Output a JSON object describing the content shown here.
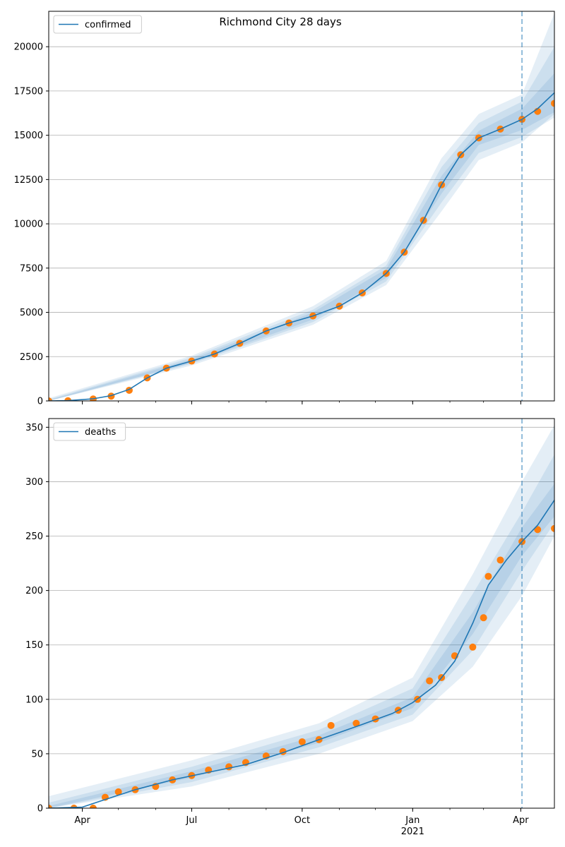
{
  "title": "Richmond City 28 days",
  "colors": {
    "model_line": "#1f77b4",
    "observed_points": "#ff7f0e",
    "band": "#1f77b4",
    "grid": "#b0b0b0",
    "forecast_marker": "#1f77b4"
  },
  "x_axis": {
    "major_ticks": [
      {
        "label": "Apr",
        "date": "2020-04-01"
      },
      {
        "label": "Jul",
        "date": "2020-07-01"
      },
      {
        "label": "Oct",
        "date": "2020-10-01"
      },
      {
        "label": "Jan",
        "sublabel": "2021",
        "date": "2021-01-01"
      },
      {
        "label": "Apr",
        "date": "2021-04-01"
      }
    ],
    "range": [
      "2020-03-04",
      "2021-04-29"
    ],
    "forecast_start": "2021-04-02"
  },
  "chart_data": [
    {
      "type": "line",
      "panel": "top",
      "legend": "confirmed",
      "legend_position": "top-left",
      "grid": "horizontal",
      "ylim": [
        0,
        22000
      ],
      "yticks": [
        0,
        2500,
        5000,
        7500,
        10000,
        12500,
        15000,
        17500,
        20000
      ],
      "model": [
        {
          "x": "2020-03-04",
          "y": 0
        },
        {
          "x": "2020-03-20",
          "y": 20
        },
        {
          "x": "2020-04-10",
          "y": 120
        },
        {
          "x": "2020-04-25",
          "y": 300
        },
        {
          "x": "2020-05-10",
          "y": 650
        },
        {
          "x": "2020-05-25",
          "y": 1300
        },
        {
          "x": "2020-06-10",
          "y": 1850
        },
        {
          "x": "2020-07-01",
          "y": 2250
        },
        {
          "x": "2020-07-20",
          "y": 2650
        },
        {
          "x": "2020-08-10",
          "y": 3250
        },
        {
          "x": "2020-09-01",
          "y": 3950
        },
        {
          "x": "2020-09-20",
          "y": 4400
        },
        {
          "x": "2020-10-10",
          "y": 4800
        },
        {
          "x": "2020-11-01",
          "y": 5350
        },
        {
          "x": "2020-11-20",
          "y": 6100
        },
        {
          "x": "2020-12-10",
          "y": 7200
        },
        {
          "x": "2020-12-25",
          "y": 8400
        },
        {
          "x": "2021-01-10",
          "y": 10200
        },
        {
          "x": "2021-01-25",
          "y": 12200
        },
        {
          "x": "2021-02-10",
          "y": 13900
        },
        {
          "x": "2021-02-25",
          "y": 14850
        },
        {
          "x": "2021-03-15",
          "y": 15350
        },
        {
          "x": "2021-04-02",
          "y": 15900
        },
        {
          "x": "2021-04-15",
          "y": 16500
        },
        {
          "x": "2021-04-29",
          "y": 17400
        }
      ],
      "observed": [
        {
          "x": "2020-03-04",
          "y": 0
        },
        {
          "x": "2020-03-20",
          "y": 10
        },
        {
          "x": "2020-04-10",
          "y": 110
        },
        {
          "x": "2020-04-25",
          "y": 270
        },
        {
          "x": "2020-05-10",
          "y": 600
        },
        {
          "x": "2020-05-25",
          "y": 1300
        },
        {
          "x": "2020-06-10",
          "y": 1850
        },
        {
          "x": "2020-07-01",
          "y": 2250
        },
        {
          "x": "2020-07-20",
          "y": 2650
        },
        {
          "x": "2020-08-10",
          "y": 3250
        },
        {
          "x": "2020-09-01",
          "y": 3950
        },
        {
          "x": "2020-09-20",
          "y": 4400
        },
        {
          "x": "2020-10-10",
          "y": 4800
        },
        {
          "x": "2020-11-01",
          "y": 5350
        },
        {
          "x": "2020-11-20",
          "y": 6100
        },
        {
          "x": "2020-12-10",
          "y": 7200
        },
        {
          "x": "2020-12-25",
          "y": 8400
        },
        {
          "x": "2021-01-10",
          "y": 10200
        },
        {
          "x": "2021-01-25",
          "y": 12200
        },
        {
          "x": "2021-02-10",
          "y": 13900
        },
        {
          "x": "2021-02-25",
          "y": 14850
        },
        {
          "x": "2021-03-15",
          "y": 15350
        },
        {
          "x": "2021-04-02",
          "y": 15900
        },
        {
          "x": "2021-04-15",
          "y": 16350
        },
        {
          "x": "2021-04-29",
          "y": 16800
        }
      ],
      "bands": [
        [
          {
            "x": "2020-03-04",
            "lo": 0,
            "hi": 40
          },
          {
            "x": "2020-07-01",
            "lo": 2150,
            "hi": 2350
          },
          {
            "x": "2020-10-10",
            "lo": 4600,
            "hi": 5000
          },
          {
            "x": "2020-12-10",
            "lo": 6950,
            "hi": 7450
          },
          {
            "x": "2021-01-25",
            "lo": 11700,
            "hi": 12700
          },
          {
            "x": "2021-02-25",
            "lo": 14450,
            "hi": 15250
          },
          {
            "x": "2021-04-02",
            "lo": 15300,
            "hi": 16500
          },
          {
            "x": "2021-04-29",
            "lo": 16300,
            "hi": 18500
          }
        ],
        [
          {
            "x": "2020-03-04",
            "lo": 0,
            "hi": 80
          },
          {
            "x": "2020-07-01",
            "lo": 2100,
            "hi": 2450
          },
          {
            "x": "2020-10-10",
            "lo": 4450,
            "hi": 5150
          },
          {
            "x": "2020-12-10",
            "lo": 6750,
            "hi": 7650
          },
          {
            "x": "2021-01-25",
            "lo": 11200,
            "hi": 13200
          },
          {
            "x": "2021-02-25",
            "lo": 14000,
            "hi": 15700
          },
          {
            "x": "2021-04-02",
            "lo": 14900,
            "hi": 16900
          },
          {
            "x": "2021-04-29",
            "lo": 16000,
            "hi": 20000
          }
        ],
        [
          {
            "x": "2020-03-04",
            "lo": 0,
            "hi": 150
          },
          {
            "x": "2020-07-01",
            "lo": 2000,
            "hi": 2550
          },
          {
            "x": "2020-10-10",
            "lo": 4300,
            "hi": 5350
          },
          {
            "x": "2020-12-10",
            "lo": 6550,
            "hi": 7900
          },
          {
            "x": "2021-01-25",
            "lo": 10700,
            "hi": 13700
          },
          {
            "x": "2021-02-25",
            "lo": 13600,
            "hi": 16200
          },
          {
            "x": "2021-04-02",
            "lo": 14600,
            "hi": 17300
          },
          {
            "x": "2021-04-29",
            "lo": 16200,
            "hi": 21900
          }
        ]
      ]
    },
    {
      "type": "line",
      "panel": "bottom",
      "legend": "deaths",
      "legend_position": "top-left",
      "grid": "horizontal",
      "ylim": [
        0,
        358
      ],
      "yticks": [
        0,
        50,
        100,
        150,
        200,
        250,
        300,
        350
      ],
      "model": [
        {
          "x": "2020-03-04",
          "y": 0
        },
        {
          "x": "2020-04-01",
          "y": 1
        },
        {
          "x": "2020-04-20",
          "y": 8
        },
        {
          "x": "2020-05-15",
          "y": 17
        },
        {
          "x": "2020-06-15",
          "y": 26
        },
        {
          "x": "2020-07-15",
          "y": 33
        },
        {
          "x": "2020-08-15",
          "y": 40
        },
        {
          "x": "2020-09-15",
          "y": 51
        },
        {
          "x": "2020-10-15",
          "y": 63
        },
        {
          "x": "2020-11-15",
          "y": 75
        },
        {
          "x": "2020-12-15",
          "y": 87
        },
        {
          "x": "2021-01-01",
          "y": 97
        },
        {
          "x": "2021-01-20",
          "y": 113
        },
        {
          "x": "2021-02-05",
          "y": 135
        },
        {
          "x": "2021-02-20",
          "y": 170
        },
        {
          "x": "2021-03-05",
          "y": 205
        },
        {
          "x": "2021-03-20",
          "y": 228
        },
        {
          "x": "2021-04-02",
          "y": 245
        },
        {
          "x": "2021-04-15",
          "y": 260
        },
        {
          "x": "2021-04-29",
          "y": 283
        }
      ],
      "observed": [
        {
          "x": "2020-03-04",
          "y": 0
        },
        {
          "x": "2020-03-25",
          "y": 0
        },
        {
          "x": "2020-04-10",
          "y": 0
        },
        {
          "x": "2020-04-20",
          "y": 10
        },
        {
          "x": "2020-05-01",
          "y": 15
        },
        {
          "x": "2020-05-15",
          "y": 17
        },
        {
          "x": "2020-06-01",
          "y": 20
        },
        {
          "x": "2020-06-15",
          "y": 26
        },
        {
          "x": "2020-07-01",
          "y": 30
        },
        {
          "x": "2020-07-15",
          "y": 35
        },
        {
          "x": "2020-08-01",
          "y": 38
        },
        {
          "x": "2020-08-15",
          "y": 42
        },
        {
          "x": "2020-09-01",
          "y": 48
        },
        {
          "x": "2020-09-15",
          "y": 52
        },
        {
          "x": "2020-10-01",
          "y": 61
        },
        {
          "x": "2020-10-15",
          "y": 63
        },
        {
          "x": "2020-10-25",
          "y": 76
        },
        {
          "x": "2020-11-15",
          "y": 78
        },
        {
          "x": "2020-12-01",
          "y": 82
        },
        {
          "x": "2020-12-20",
          "y": 90
        },
        {
          "x": "2021-01-05",
          "y": 100
        },
        {
          "x": "2021-01-15",
          "y": 117
        },
        {
          "x": "2021-01-25",
          "y": 120
        },
        {
          "x": "2021-02-05",
          "y": 140
        },
        {
          "x": "2021-02-20",
          "y": 148
        },
        {
          "x": "2021-03-01",
          "y": 175
        },
        {
          "x": "2021-03-05",
          "y": 213
        },
        {
          "x": "2021-03-15",
          "y": 228
        },
        {
          "x": "2021-04-02",
          "y": 245
        },
        {
          "x": "2021-04-15",
          "y": 256
        },
        {
          "x": "2021-04-29",
          "y": 257
        }
      ],
      "bands": [
        [
          {
            "x": "2020-03-04",
            "lo": 0,
            "hi": 2
          },
          {
            "x": "2020-07-01",
            "lo": 28,
            "hi": 34
          },
          {
            "x": "2020-10-15",
            "lo": 60,
            "hi": 67
          },
          {
            "x": "2021-01-01",
            "lo": 92,
            "hi": 102
          },
          {
            "x": "2021-02-20",
            "lo": 160,
            "hi": 180
          },
          {
            "x": "2021-04-02",
            "lo": 232,
            "hi": 258
          },
          {
            "x": "2021-04-29",
            "lo": 268,
            "hi": 298
          }
        ],
        [
          {
            "x": "2020-03-04",
            "lo": 0,
            "hi": 5
          },
          {
            "x": "2020-07-01",
            "lo": 24,
            "hi": 38
          },
          {
            "x": "2020-10-15",
            "lo": 56,
            "hi": 72
          },
          {
            "x": "2021-01-01",
            "lo": 86,
            "hi": 110
          },
          {
            "x": "2021-02-20",
            "lo": 145,
            "hi": 197
          },
          {
            "x": "2021-04-02",
            "lo": 218,
            "hi": 272
          },
          {
            "x": "2021-04-29",
            "lo": 262,
            "hi": 325
          }
        ],
        [
          {
            "x": "2020-03-04",
            "lo": 0,
            "hi": 11
          },
          {
            "x": "2020-07-01",
            "lo": 20,
            "hi": 44
          },
          {
            "x": "2020-10-15",
            "lo": 50,
            "hi": 78
          },
          {
            "x": "2021-01-01",
            "lo": 80,
            "hi": 120
          },
          {
            "x": "2021-02-20",
            "lo": 130,
            "hi": 215
          },
          {
            "x": "2021-04-02",
            "lo": 195,
            "hi": 300
          },
          {
            "x": "2021-04-29",
            "lo": 250,
            "hi": 352
          }
        ]
      ]
    }
  ]
}
